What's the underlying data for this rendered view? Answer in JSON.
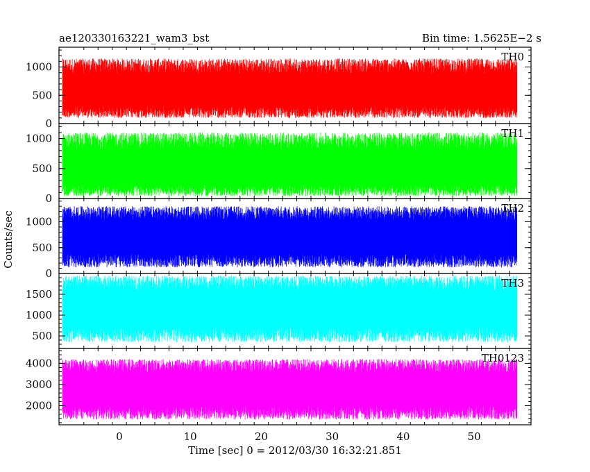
{
  "header": {
    "title": "ae120330163221_wam3_bst",
    "bin_time": "Bin time: 1.5625E−2 s"
  },
  "axes": {
    "xlabel": "Time [sec] 0 = 2012/03/30 16:32:21.851",
    "ylabel": "Counts/sec"
  },
  "chart_data": {
    "type": "line",
    "title": "ae120330163221_wam3_bst",
    "xlabel": "Time [sec] 0 = 2012/03/30 16:32:21.851",
    "ylabel": "Counts/sec",
    "xlim": [
      -8.5,
      58
    ],
    "x_ticks": [
      0,
      10,
      20,
      30,
      40,
      50
    ],
    "x_range": [
      -8.0,
      56.0
    ],
    "bin_time": 0.015625,
    "grid": false,
    "panels": [
      {
        "name": "TH0",
        "color": "#ff0000",
        "ylim": [
          0,
          1350
        ],
        "y_ticks": [
          0,
          500,
          1000
        ],
        "mean": 560,
        "low": 100,
        "high": 1150
      },
      {
        "name": "TH1",
        "color": "#00ff00",
        "ylim": [
          0,
          1250
        ],
        "y_ticks": [
          0,
          500,
          1000
        ],
        "mean": 460,
        "low": 40,
        "high": 1100
      },
      {
        "name": "TH2",
        "color": "#0000ff",
        "ylim": [
          0,
          1450
        ],
        "y_ticks": [
          0,
          500,
          1000
        ],
        "mean": 690,
        "low": 120,
        "high": 1300
      },
      {
        "name": "TH3",
        "color": "#00ffff",
        "ylim": [
          200,
          2000
        ],
        "y_ticks": [
          500,
          1000,
          1500
        ],
        "mean": 1150,
        "low": 350,
        "high": 1950
      },
      {
        "name": "TH0123",
        "color": "#ff00ff",
        "ylim": [
          1100,
          4700
        ],
        "y_ticks": [
          2000,
          3000,
          4000
        ],
        "mean": 2750,
        "low": 1350,
        "high": 4200
      }
    ]
  }
}
